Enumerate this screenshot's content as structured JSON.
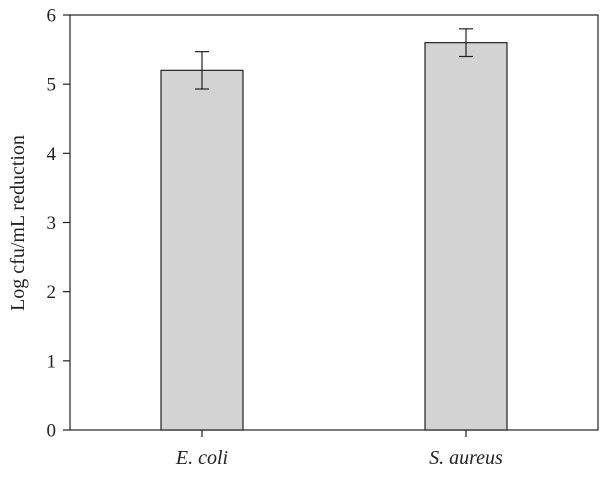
{
  "chart_data": {
    "type": "bar",
    "categories": [
      "E. coli",
      "S. aureus"
    ],
    "values": [
      5.2,
      5.6
    ],
    "errors": [
      0.27,
      0.2
    ],
    "title": "",
    "xlabel": "",
    "ylabel": "Log cfu/mL reduction",
    "ylim": [
      0,
      6
    ],
    "yticks": [
      "0",
      "1",
      "2",
      "3",
      "4",
      "5",
      "6"
    ],
    "grid": false,
    "legend": "none",
    "bar_color": "#d3d3d3",
    "bar_edge_color": "#222222"
  }
}
